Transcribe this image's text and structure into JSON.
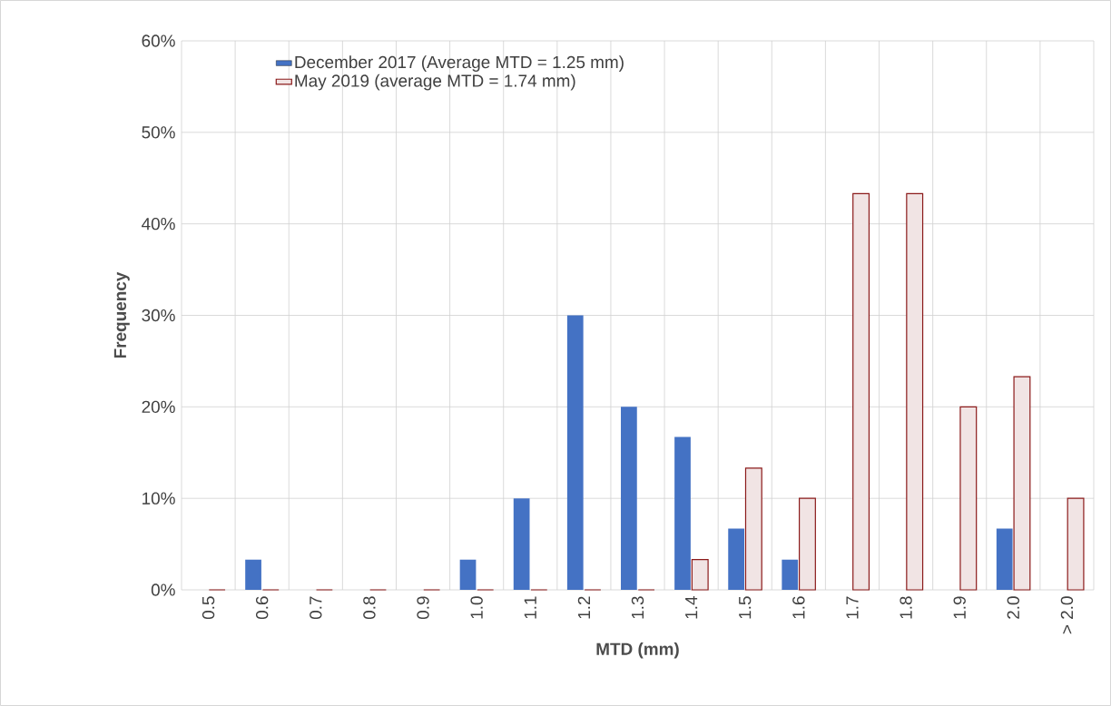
{
  "chart_data": {
    "type": "bar",
    "xlabel": "MTD (mm)",
    "ylabel": "Frequency",
    "categories": [
      "0.5",
      "0.6",
      "0.7",
      "0.8",
      "0.9",
      "1.0",
      "1.1",
      "1.2",
      "1.3",
      "1.4",
      "1.5",
      "1.6",
      "1.7",
      "1.8",
      "1.9",
      "2.0",
      "> 2.0"
    ],
    "series": [
      {
        "name": "December 2017 (Average MTD = 1.25 mm)",
        "color": "#4472c4",
        "values": [
          0,
          3.3,
          0,
          0,
          0,
          3.3,
          10,
          30,
          20,
          16.7,
          6.7,
          3.3,
          0,
          0,
          0,
          6.7,
          0
        ]
      },
      {
        "name": "May 2019 (average MTD = 1.74 mm)",
        "color": "#8b1a1a",
        "values": [
          0,
          0,
          0,
          0,
          0,
          0,
          0,
          0,
          0,
          3.3,
          13.3,
          10,
          43.3,
          43.3,
          20,
          23.3,
          10
        ]
      }
    ],
    "ylim": [
      0,
      60
    ],
    "yticks": [
      {
        "value": 0,
        "label": "0%"
      },
      {
        "value": 10,
        "label": "10%"
      },
      {
        "value": 20,
        "label": "20%"
      },
      {
        "value": 30,
        "label": "30%"
      },
      {
        "value": 40,
        "label": "40%"
      },
      {
        "value": 50,
        "label": "50%"
      },
      {
        "value": 60,
        "label": "60%"
      }
    ],
    "grid": true,
    "legend": "top"
  }
}
